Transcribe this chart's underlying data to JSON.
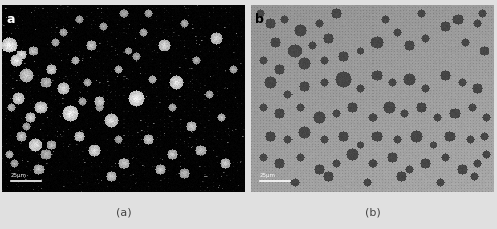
{
  "panel_a": {
    "bg_color": "#000000",
    "label": "a",
    "label_color": "#ffffff",
    "scale_bar_text": "25μm",
    "noise_seed": 42
  },
  "panel_b": {
    "bg_color_light": "#999999",
    "bg_color_dark": "#777777",
    "label": "b",
    "label_color": "#000000",
    "scale_bar_text": "25μm",
    "noise_seed": 123
  },
  "caption_a": "(a)",
  "caption_b": "(b)",
  "caption_fontsize": 8,
  "caption_color": "#444444",
  "outer_bg": "#e0e0e0"
}
